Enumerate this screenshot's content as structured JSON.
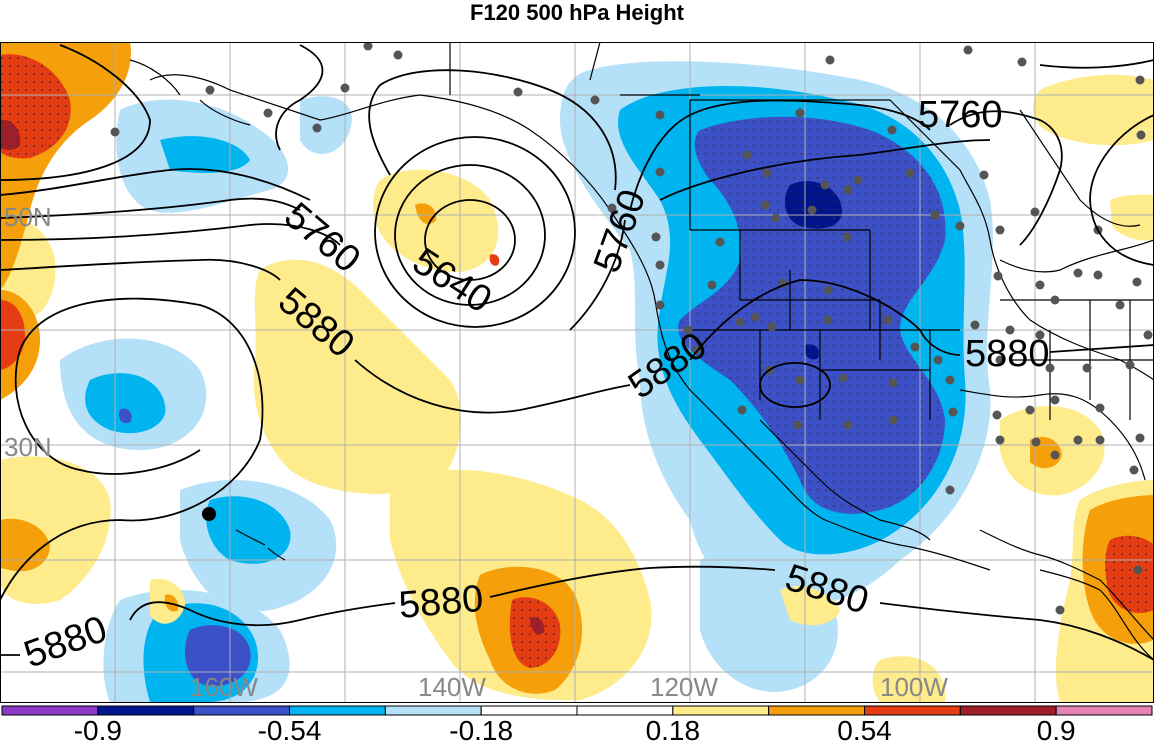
{
  "title": "F120 500 hPa Height",
  "colors": {
    "ocean_bg": "#ffffff",
    "light_blue": "#b4e0f8",
    "blue": "#00b4f0",
    "dark_blue": "#3c50c8",
    "navy": "#00148c",
    "light_yellow": "#fdeb8c",
    "orange": "#f5a00a",
    "red_orange": "#e63c14",
    "dark_red": "#a01e28",
    "purple": "#8c3cc8",
    "pink": "#e682b4",
    "white_band": "#ffffff"
  },
  "contours": {
    "labels": [
      "5760",
      "5640",
      "5880",
      "5760",
      "5880",
      "5880",
      "5880",
      "5880",
      "5760"
    ]
  },
  "gridlines": {
    "lat_labels": [
      "50N",
      "30N"
    ],
    "lon_labels": [
      "160W",
      "140W",
      "120W",
      "100W"
    ]
  },
  "colorbar": {
    "colors": [
      "#8c3cc8",
      "#00148c",
      "#3c50c8",
      "#00b4f0",
      "#b4e0f8",
      "#ffffff",
      "#ffffff",
      "#fdeb8c",
      "#f5a00a",
      "#e63c14",
      "#a01e28",
      "#e682b4"
    ],
    "tick_labels": [
      "-0.9",
      "-0.54",
      "-0.18",
      "0.18",
      "0.54",
      "0.9"
    ]
  }
}
